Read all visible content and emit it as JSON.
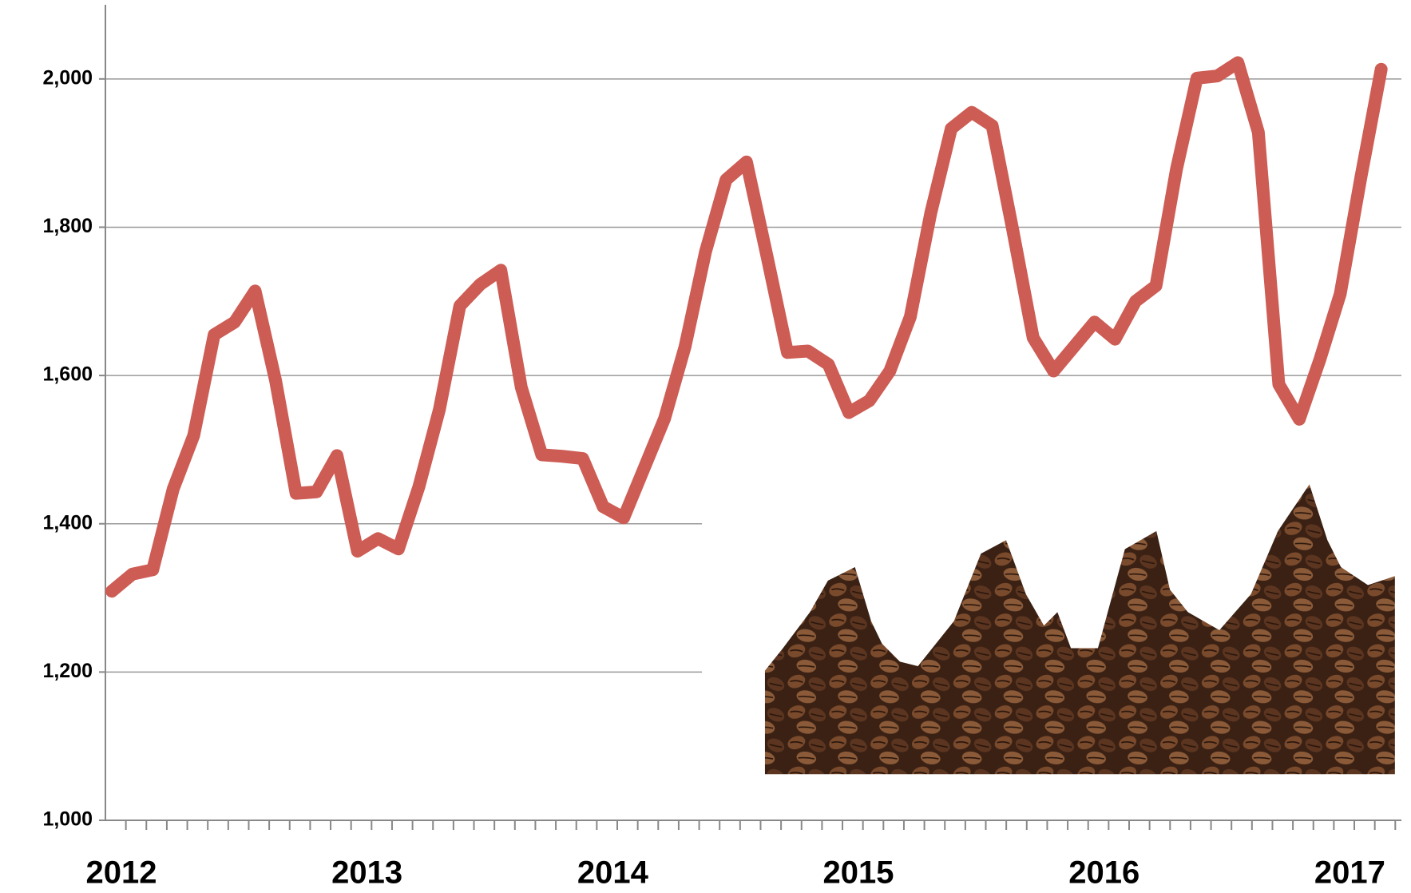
{
  "chart_data": {
    "type": "line",
    "categories": [
      "2012",
      null,
      null,
      null,
      null,
      null,
      null,
      null,
      null,
      null,
      null,
      null,
      "2013",
      null,
      null,
      null,
      null,
      null,
      null,
      null,
      null,
      null,
      null,
      null,
      "2014",
      null,
      null,
      null,
      null,
      null,
      null,
      null,
      null,
      null,
      null,
      null,
      "2015",
      null,
      null,
      null,
      null,
      null,
      null,
      null,
      null,
      null,
      null,
      null,
      "2016",
      null,
      null,
      null,
      null,
      null,
      null,
      null,
      null,
      null,
      null,
      null,
      "2017",
      null,
      null
    ],
    "values": [
      1309,
      1332,
      1338,
      1447,
      1519,
      1655,
      1672,
      1714,
      1593,
      1441,
      1443,
      1492,
      1363,
      1380,
      1366,
      1450,
      1554,
      1694,
      1723,
      1742,
      1584,
      1493,
      1491,
      1488,
      1423,
      1408,
      1475,
      1542,
      1639,
      1767,
      1864,
      1888,
      1761,
      1631,
      1633,
      1615,
      1550,
      1566,
      1606,
      1679,
      1819,
      1933,
      1955,
      1937,
      1797,
      1651,
      1606,
      1639,
      1672,
      1649,
      1700,
      1721,
      1878,
      2001,
      2004,
      2022,
      1928,
      1588,
      1541,
      1621,
      1710,
      1866,
      2013
    ],
    "color": "#cd5c54",
    "ylim": [
      1000,
      2100
    ],
    "yticks": [
      {
        "value": 1000,
        "label": "1,000"
      },
      {
        "value": 1200,
        "label": "1,200"
      },
      {
        "value": 1400,
        "label": "1,400"
      },
      {
        "value": 1600,
        "label": "1,600"
      },
      {
        "value": 1800,
        "label": "1,800"
      },
      {
        "value": 2000,
        "label": "2,000"
      }
    ],
    "grid": true
  }
}
